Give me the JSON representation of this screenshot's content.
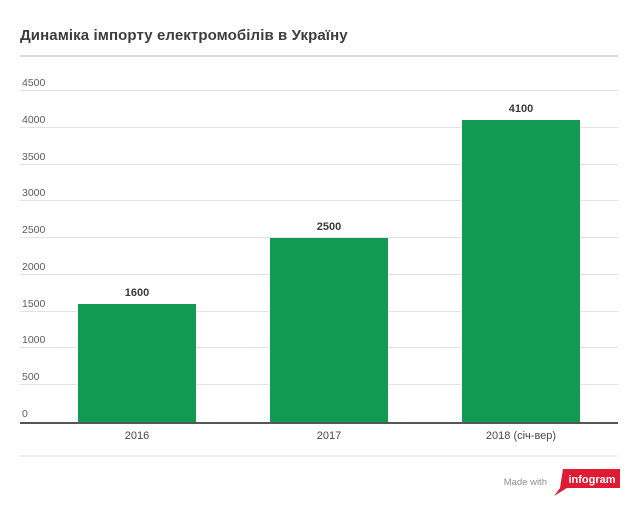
{
  "header": {
    "title": "Динаміка імпорту електромобілів в Україну"
  },
  "chart_data": {
    "type": "bar",
    "title": "Динаміка імпорту електромобілів в Україну",
    "categories": [
      "2016",
      "2017",
      "2018 (січ-вер)"
    ],
    "values": [
      1600,
      2500,
      4100
    ],
    "xlabel": "",
    "ylabel": "",
    "ylim": [
      0,
      4500
    ],
    "yticks": [
      0,
      500,
      1000,
      1500,
      2000,
      2500,
      3000,
      3500,
      4000,
      4500
    ],
    "grid": true,
    "legend": "none",
    "value_labels_shown": true,
    "bar_color": "#119b52"
  },
  "footer": {
    "made_with": "Made with",
    "brand": "infogram",
    "brand_color": "#e01a32"
  }
}
